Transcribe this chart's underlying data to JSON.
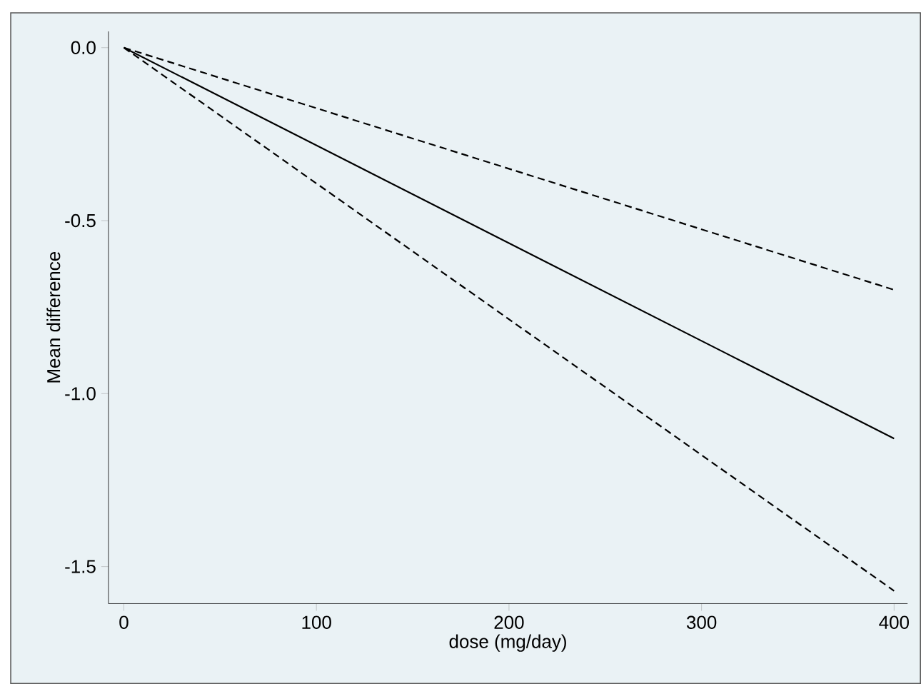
{
  "chart_data": {
    "type": "line",
    "xlabel": "dose (mg/day)",
    "ylabel": "Mean difference",
    "x": [
      0,
      400
    ],
    "series": [
      {
        "color": "#000000",
        "line_style": "dashed",
        "values": [
          0,
          -0.7
        ]
      },
      {
        "color": "#000000",
        "line_style": "solid",
        "values": [
          0,
          -1.13
        ]
      },
      {
        "color": "#000000",
        "line_style": "dashed",
        "values": [
          0,
          -1.57
        ]
      }
    ],
    "xlim": [
      -8,
      407
    ],
    "ylim": [
      -1.607,
      0.047
    ],
    "xticks": [
      0,
      100,
      200,
      300,
      400
    ],
    "yticks": [
      {
        "value": 0,
        "label": "0.0"
      },
      {
        "value": -0.5,
        "label": "-0.5"
      },
      {
        "value": -1,
        "label": "-1.0"
      },
      {
        "value": -1.5,
        "label": "-1.5"
      }
    ],
    "grid": false,
    "marker": "none"
  }
}
